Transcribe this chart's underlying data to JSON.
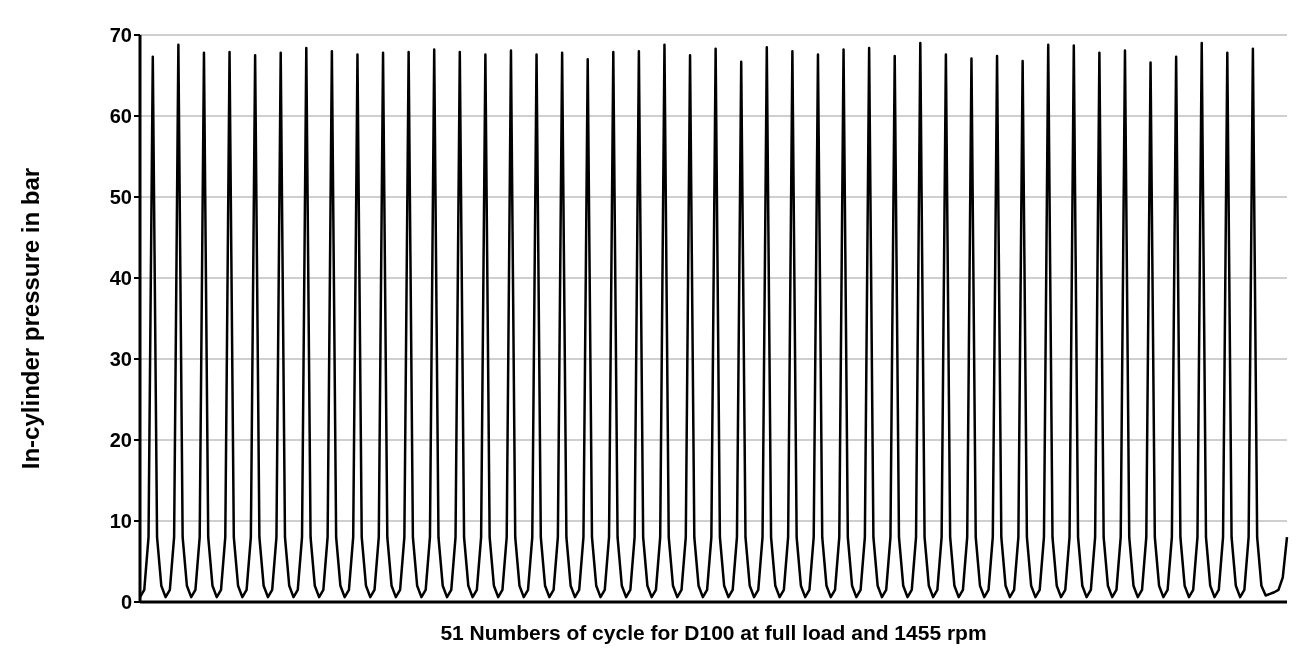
{
  "chart_data": {
    "type": "line",
    "xlabel": "51 Numbers of cycle for D100 at full load and 1455 rpm",
    "ylabel": "In-cylinder pressure in bar",
    "ylim": [
      0,
      70
    ],
    "yticks": [
      0,
      10,
      20,
      30,
      40,
      50,
      60,
      70
    ],
    "grid": "y",
    "legend": false,
    "marker": "none",
    "line_style": "solid",
    "tick_labels": "y",
    "categories": [
      null,
      null,
      null,
      null,
      null,
      null,
      null,
      null,
      null,
      null,
      null,
      null,
      null,
      null,
      null,
      null,
      null,
      null,
      null,
      null,
      null,
      null,
      null,
      null,
      null,
      null,
      null,
      null,
      null,
      null,
      null,
      null,
      null,
      null,
      null,
      null,
      null,
      null,
      null,
      null,
      null,
      null,
      null,
      null,
      null,
      null,
      null,
      null,
      null,
      null,
      null,
      null,
      null,
      null,
      null,
      null,
      null,
      null,
      null,
      null,
      null,
      null,
      null,
      null,
      null,
      null,
      null,
      null,
      null,
      null,
      null,
      null,
      null,
      null,
      null,
      null,
      null,
      null,
      null,
      null,
      null,
      null,
      null,
      null,
      null,
      null,
      null,
      null,
      null,
      null,
      null,
      null,
      null,
      null,
      null,
      null,
      null,
      null,
      null,
      null,
      null,
      null,
      null,
      null,
      null,
      null,
      null,
      null,
      null,
      null,
      null,
      null,
      null,
      null,
      null,
      null,
      null,
      null,
      null,
      null,
      null,
      null,
      null,
      null,
      null,
      null,
      null,
      null,
      null,
      null,
      null,
      null,
      null,
      null,
      null,
      null,
      null,
      null,
      null,
      null,
      null,
      null,
      null,
      null,
      null,
      null,
      null,
      null,
      null,
      null,
      null,
      null,
      null,
      null,
      null,
      null,
      null,
      null,
      null,
      null,
      null,
      null,
      null,
      null,
      null,
      null,
      null,
      null,
      null,
      null,
      null,
      null,
      null,
      null,
      null,
      null,
      null,
      null,
      null,
      null,
      null,
      null,
      null,
      null,
      null,
      null,
      null,
      null,
      null,
      null,
      null,
      null,
      null,
      null,
      null,
      null,
      null,
      null,
      null,
      null,
      null,
      null,
      null,
      null,
      null,
      null,
      null,
      null,
      null,
      null,
      null,
      null,
      null,
      null,
      null,
      null,
      null,
      null,
      null,
      null,
      null,
      null,
      null,
      null,
      null,
      null,
      null,
      null,
      null,
      null,
      null,
      null,
      null,
      null,
      null,
      null,
      null,
      null,
      null,
      null,
      null,
      null,
      null,
      null,
      null,
      null,
      null,
      null,
      null,
      null,
      null,
      null,
      null,
      null,
      null,
      null,
      null,
      null,
      null,
      null,
      null,
      null,
      null,
      null,
      null,
      null,
      null,
      null,
      null,
      null
    ],
    "series": [
      {
        "color": "#000000",
        "values": [
          0.6,
          1.5,
          8,
          67.3,
          8,
          2,
          0.6,
          1.5,
          8,
          68.8,
          8,
          2,
          0.6,
          1.5,
          8,
          67.8,
          8,
          2,
          0.6,
          1.5,
          8,
          67.9,
          8,
          2,
          0.6,
          1.5,
          8,
          67.5,
          8,
          2,
          0.6,
          1.5,
          8,
          67.8,
          8,
          2,
          0.6,
          1.5,
          8,
          68.4,
          8,
          2,
          0.6,
          1.5,
          8,
          68.0,
          8,
          2,
          0.6,
          1.5,
          8,
          67.6,
          8,
          2,
          0.6,
          1.5,
          8,
          67.8,
          8,
          2,
          0.6,
          1.5,
          8,
          67.9,
          8,
          2,
          0.6,
          1.5,
          8,
          68.2,
          8,
          2,
          0.6,
          1.5,
          8,
          67.9,
          8,
          2,
          0.6,
          1.5,
          8,
          67.6,
          8,
          2,
          0.6,
          1.5,
          8,
          68.1,
          8,
          2,
          0.6,
          1.5,
          8,
          67.6,
          8,
          2,
          0.6,
          1.5,
          8,
          67.8,
          8,
          2,
          0.6,
          1.5,
          8,
          67.0,
          8,
          2,
          0.6,
          1.5,
          8,
          67.9,
          8,
          2,
          0.6,
          1.5,
          8,
          68.0,
          8,
          2,
          0.6,
          1.5,
          8,
          68.8,
          8,
          2,
          0.6,
          1.5,
          8,
          67.5,
          8,
          2,
          0.6,
          1.5,
          8,
          68.3,
          8,
          2,
          0.6,
          1.5,
          8,
          66.7,
          8,
          2,
          0.6,
          1.5,
          8,
          68.5,
          8,
          2,
          0.6,
          1.5,
          8,
          68.0,
          8,
          2,
          0.6,
          1.5,
          8,
          67.6,
          8,
          2,
          0.6,
          1.5,
          8,
          68.2,
          8,
          2,
          0.6,
          1.5,
          8,
          68.4,
          8,
          2,
          0.6,
          1.5,
          8,
          67.4,
          8,
          2,
          0.6,
          1.5,
          8,
          69.0,
          8,
          2,
          0.6,
          1.5,
          8,
          67.6,
          8,
          2,
          0.6,
          1.5,
          8,
          67.1,
          8,
          2,
          0.6,
          1.5,
          8,
          67.4,
          8,
          2,
          0.6,
          1.5,
          8,
          66.8,
          8,
          2,
          0.6,
          1.5,
          8,
          68.8,
          8,
          2,
          0.6,
          1.5,
          8,
          68.7,
          8,
          2,
          0.6,
          1.5,
          8,
          67.8,
          8,
          2,
          0.6,
          1.5,
          8,
          68.1,
          8,
          2,
          0.6,
          1.5,
          8,
          66.6,
          8,
          2,
          0.6,
          1.5,
          8,
          67.3,
          8,
          2,
          0.6,
          1.5,
          8,
          69.0,
          8,
          2,
          0.6,
          1.5,
          8,
          67.8,
          8,
          2,
          0.6,
          1.5,
          8,
          68.3,
          8,
          2,
          0.8,
          1,
          1.2,
          1.5,
          3,
          8
        ]
      }
    ]
  }
}
